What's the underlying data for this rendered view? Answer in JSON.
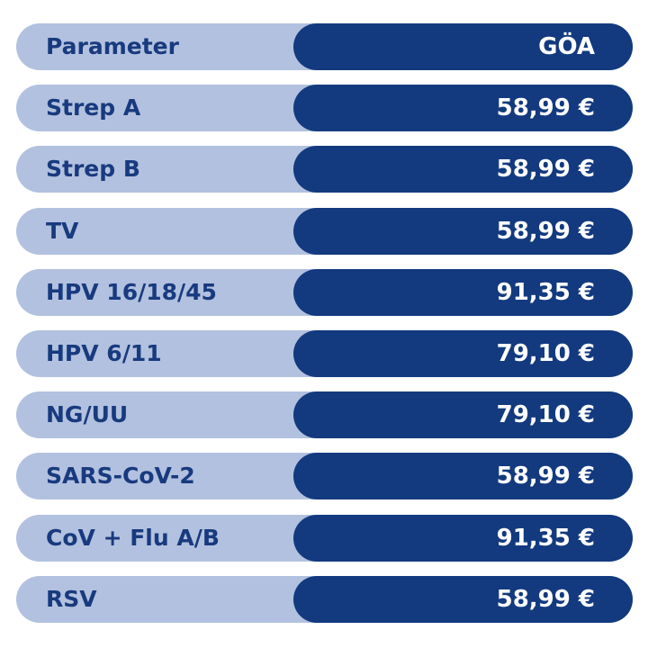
{
  "header": {
    "parameter": "Parameter",
    "price": "GÖA"
  },
  "rows": [
    {
      "parameter": "Strep A",
      "price": "58,99 €"
    },
    {
      "parameter": "Strep B",
      "price": "58,99 €"
    },
    {
      "parameter": "TV",
      "price": "58,99 €"
    },
    {
      "parameter": "HPV 16/18/45",
      "price": "91,35 €"
    },
    {
      "parameter": "HPV 6/11",
      "price": "79,10 €"
    },
    {
      "parameter": "NG/UU",
      "price": "79,10 €"
    },
    {
      "parameter": "SARS-CoV-2",
      "price": "58,99 €"
    },
    {
      "parameter": "CoV + Flu A/B",
      "price": "91,35 €"
    },
    {
      "parameter": "RSV",
      "price": "58,99 €"
    }
  ],
  "colors": {
    "label_pill": "#b2c1df",
    "value_pill": "#133a7f",
    "label_text": "#183a7e",
    "value_text": "#ffffff"
  }
}
